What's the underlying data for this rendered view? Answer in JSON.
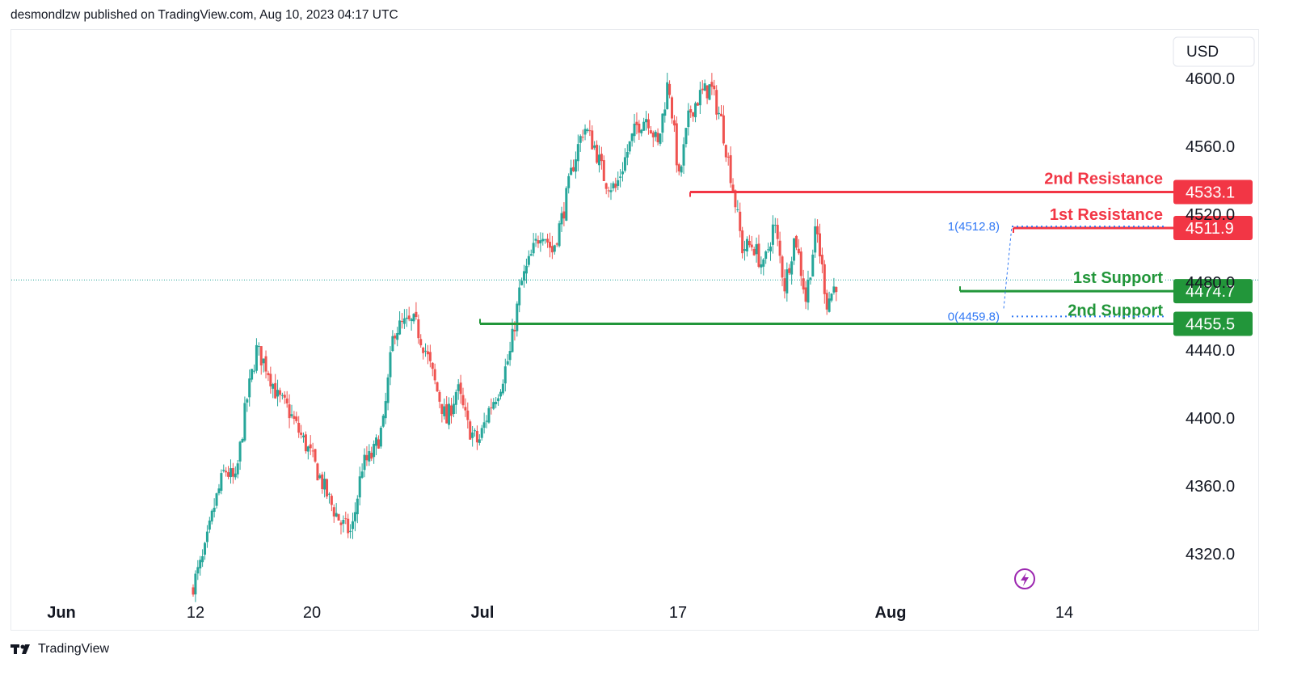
{
  "header": {
    "publisher_line": "desmondlzw published on TradingView.com, Aug 10, 2023 04:17 UTC"
  },
  "footer": {
    "brand": "TradingView",
    "logo_icon": "tradingview-logo-icon"
  },
  "currency_button": {
    "label": "USD"
  },
  "colors": {
    "up": "#26a69a",
    "down": "#ef5350",
    "resistance": "#f23645",
    "support": "#22963a",
    "fib": "#3179f5",
    "last_price": "#26a69a",
    "grid_text": "#131722",
    "lightning": "#9c27b0"
  },
  "chart_data": {
    "type": "candlestick",
    "title": "",
    "price_axis": {
      "ticks": [
        "4600.0",
        "4560.0",
        "4520.0",
        "4480.0",
        "4440.0",
        "4400.0",
        "4360.0",
        "4320.0"
      ],
      "range": [
        4290,
        4632
      ]
    },
    "time_axis": {
      "ticks": [
        {
          "label": "Jun",
          "bold": true
        },
        {
          "label": "12",
          "bold": false
        },
        {
          "label": "20",
          "bold": false
        },
        {
          "label": "Jul",
          "bold": true
        },
        {
          "label": "17",
          "bold": false
        },
        {
          "label": "Aug",
          "bold": true
        },
        {
          "label": "14",
          "bold": false
        }
      ]
    },
    "last_price": 4481.3,
    "levels": [
      {
        "name": "2nd Resistance",
        "value": 4533.1,
        "value_label": "4533.1",
        "kind": "resistance"
      },
      {
        "name": "1st Resistance",
        "value": 4511.9,
        "value_label": "4511.9",
        "kind": "resistance"
      },
      {
        "name": "1st Support",
        "value": 4474.7,
        "value_label": "4474.7",
        "kind": "support"
      },
      {
        "name": "2nd Support",
        "value": 4455.5,
        "value_label": "4455.5",
        "kind": "support"
      }
    ],
    "fib": [
      {
        "label": "1(4512.8)",
        "value": 4512.8
      },
      {
        "label": "0(4459.8)",
        "value": 4459.8
      }
    ],
    "candle_waypoints": [
      [
        "Jun 12",
        4302
      ],
      [
        "Jun 13",
        4318
      ],
      [
        "Jun 14",
        4348
      ],
      [
        "Jun 15",
        4370
      ],
      [
        "Jun 16",
        4362
      ],
      [
        "Jun 17",
        4408
      ],
      [
        "Jun 18",
        4440
      ],
      [
        "Jun 19",
        4430
      ],
      [
        "Jun 20",
        4412
      ],
      [
        "Jun 21",
        4405
      ],
      [
        "Jun 22",
        4392
      ],
      [
        "Jun 23",
        4380
      ],
      [
        "Jun 24",
        4365
      ],
      [
        "Jun 25",
        4350
      ],
      [
        "Jun 26",
        4338
      ],
      [
        "Jun 27",
        4332
      ],
      [
        "Jun 28",
        4372
      ],
      [
        "Jun 29",
        4378
      ],
      [
        "Jun 30",
        4396
      ],
      [
        "Jul 1",
        4452
      ],
      [
        "Jul 2",
        4455
      ],
      [
        "Jul 3",
        4456
      ],
      [
        "Jul 4",
        4440
      ],
      [
        "Jul 5",
        4418
      ],
      [
        "Jul 6",
        4398
      ],
      [
        "Jul 7",
        4418
      ],
      [
        "Jul 8",
        4395
      ],
      [
        "Jul 9",
        4385
      ],
      [
        "Jul 10",
        4405
      ],
      [
        "Jul 11",
        4418
      ],
      [
        "Jul 12",
        4438
      ],
      [
        "Jul 13",
        4478
      ],
      [
        "Jul 14",
        4495
      ],
      [
        "Jul 15",
        4512
      ],
      [
        "Jul 16",
        4498
      ],
      [
        "Jul 17",
        4520
      ],
      [
        "Jul 18",
        4550
      ],
      [
        "Jul 19",
        4572
      ],
      [
        "Jul 20",
        4560
      ],
      [
        "Jul 21",
        4540
      ],
      [
        "Jul 22",
        4535
      ],
      [
        "Jul 23",
        4555
      ],
      [
        "Jul 24",
        4572
      ],
      [
        "Jul 25",
        4578
      ],
      [
        "Jul 26",
        4560
      ],
      [
        "Jul 27",
        4600
      ],
      [
        "Jul 28",
        4540
      ],
      [
        "Jul 29",
        4580
      ],
      [
        "Jul 30",
        4590
      ],
      [
        "Jul 31",
        4595
      ],
      [
        "Aug 1",
        4575
      ],
      [
        "Aug 2",
        4540
      ],
      [
        "Aug 3",
        4500
      ],
      [
        "Aug 4",
        4502
      ],
      [
        "Aug 5",
        4488
      ],
      [
        "Aug 6",
        4515
      ],
      [
        "Aug 7",
        4478
      ],
      [
        "Aug 8",
        4508
      ],
      [
        "Aug 9",
        4470
      ],
      [
        "Aug 10",
        4512
      ],
      [
        "Aug 11",
        4468
      ],
      [
        "Aug 12",
        4481
      ]
    ]
  }
}
